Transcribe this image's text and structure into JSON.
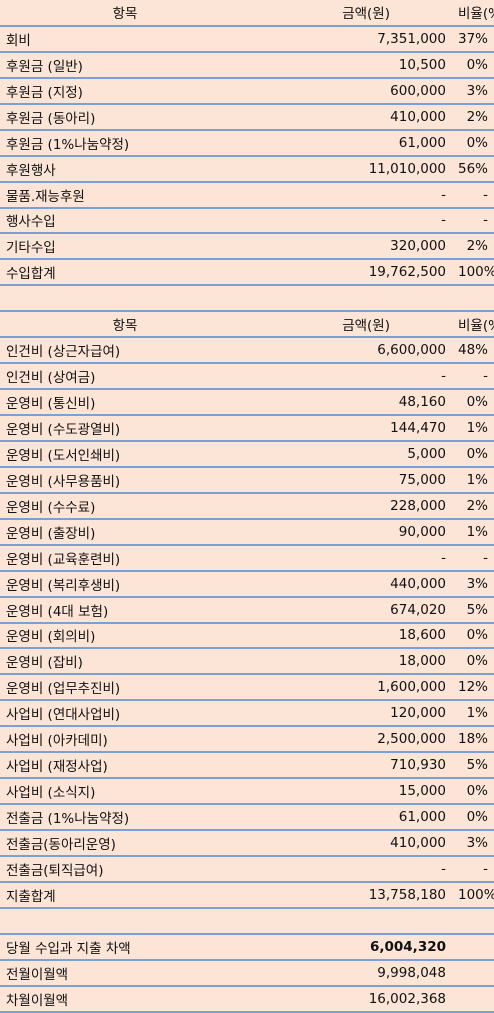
{
  "income": {
    "header": [
      "항목",
      "금액(원)",
      "비율(%)"
    ],
    "rows": [
      [
        "회비",
        "7,351,000",
        "37%"
      ],
      [
        "후원금 (일반)",
        "10,500",
        "0%"
      ],
      [
        "후원금 (지정)",
        "600,000",
        "3%"
      ],
      [
        "후원금 (동아리)",
        "410,000",
        "2%"
      ],
      [
        "후원금 (1%나눔약정)",
        "61,000",
        "0%"
      ],
      [
        "후원행사",
        "11,010,000",
        "56%"
      ],
      [
        "물품.재능후원",
        "-",
        "-"
      ],
      [
        "행사수입",
        "-",
        "-"
      ],
      [
        "기타수입",
        "320,000",
        "2%"
      ],
      [
        "수입합계",
        "19,762,500",
        "100%"
      ]
    ]
  },
  "expense": {
    "header": [
      "항목",
      "금액(원)",
      "비율(%)"
    ],
    "rows": [
      [
        "인건비 (상근자급여)",
        "6,600,000",
        "48%"
      ],
      [
        "인건비 (상여금)",
        "-",
        "-"
      ],
      [
        "운영비 (통신비)",
        "48,160",
        "0%"
      ],
      [
        "운영비 (수도광열비)",
        "144,470",
        "1%"
      ],
      [
        "운영비 (도서인쇄비)",
        "5,000",
        "0%"
      ],
      [
        "운영비 (사무용품비)",
        "75,000",
        "1%"
      ],
      [
        "운영비 (수수료)",
        "228,000",
        "2%"
      ],
      [
        "운영비 (출장비)",
        "90,000",
        "1%"
      ],
      [
        "운영비 (교육훈련비)",
        "-",
        "-"
      ],
      [
        "운영비 (복리후생비)",
        "440,000",
        "3%"
      ],
      [
        "운영비 (4대 보험)",
        "674,020",
        "5%"
      ],
      [
        "운영비 (회의비)",
        "18,600",
        "0%"
      ],
      [
        "운영비 (잡비)",
        "18,000",
        "0%"
      ],
      [
        "운영비 (업무추진비)",
        "1,600,000",
        "12%"
      ],
      [
        "사업비 (연대사업비)",
        "120,000",
        "1%"
      ],
      [
        "사업비 (아카데미)",
        "2,500,000",
        "18%"
      ],
      [
        "사업비 (재정사업)",
        "710,930",
        "5%"
      ],
      [
        "사업비 (소식지)",
        "15,000",
        "0%"
      ],
      [
        "전출금 (1%나눔약정)",
        "61,000",
        "0%"
      ],
      [
        "전출금(동아리운영)",
        "410,000",
        "3%"
      ],
      [
        "전출금(퇴직급여)",
        "-",
        "-"
      ],
      [
        "지출합계",
        "13,758,180",
        "100%"
      ]
    ]
  },
  "summary": {
    "rows": [
      [
        "당월 수입과 지출 차액",
        "6,004,320"
      ],
      [
        "전월이월액",
        "9,998,048"
      ],
      [
        "차월이월액",
        "16,002,368"
      ]
    ]
  }
}
